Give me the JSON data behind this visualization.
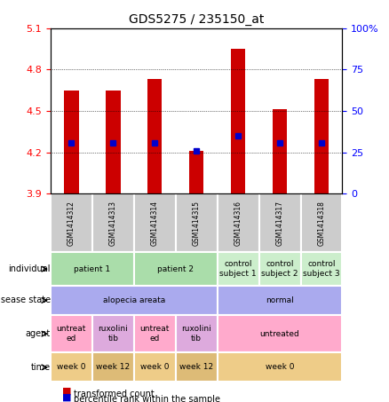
{
  "title": "GDS5275 / 235150_at",
  "samples": [
    "GSM1414312",
    "GSM1414313",
    "GSM1414314",
    "GSM1414315",
    "GSM1414316",
    "GSM1414317",
    "GSM1414318"
  ],
  "bar_values": [
    4.65,
    4.65,
    4.73,
    4.21,
    4.95,
    4.51,
    4.73
  ],
  "bar_base": 3.9,
  "percentile_values": [
    4.27,
    4.27,
    4.27,
    4.21,
    4.32,
    4.27,
    4.27
  ],
  "ylim": [
    3.9,
    5.1
  ],
  "y2lim": [
    0,
    100
  ],
  "yticks": [
    3.9,
    4.2,
    4.5,
    4.8,
    5.1
  ],
  "y2ticks": [
    0,
    25,
    50,
    75,
    100
  ],
  "bar_color": "#cc0000",
  "percentile_color": "#0000cc",
  "individual_row": {
    "label": "individual",
    "cells": [
      {
        "text": "patient 1",
        "span": 2,
        "color": "#aaddaa"
      },
      {
        "text": "patient 2",
        "span": 2,
        "color": "#aaddaa"
      },
      {
        "text": "control\nsubject 1",
        "span": 1,
        "color": "#cceecc"
      },
      {
        "text": "control\nsubject 2",
        "span": 1,
        "color": "#cceecc"
      },
      {
        "text": "control\nsubject 3",
        "span": 1,
        "color": "#cceecc"
      }
    ]
  },
  "disease_row": {
    "label": "disease state",
    "cells": [
      {
        "text": "alopecia areata",
        "span": 4,
        "color": "#aaaaee"
      },
      {
        "text": "normal",
        "span": 3,
        "color": "#aaaaee"
      }
    ]
  },
  "agent_row": {
    "label": "agent",
    "cells": [
      {
        "text": "untreat\ned",
        "span": 1,
        "color": "#ffaacc"
      },
      {
        "text": "ruxolini\ntib",
        "span": 1,
        "color": "#ddaadd"
      },
      {
        "text": "untreat\ned",
        "span": 1,
        "color": "#ffaacc"
      },
      {
        "text": "ruxolini\ntib",
        "span": 1,
        "color": "#ddaadd"
      },
      {
        "text": "untreated",
        "span": 3,
        "color": "#ffaacc"
      }
    ]
  },
  "time_row": {
    "label": "time",
    "cells": [
      {
        "text": "week 0",
        "span": 1,
        "color": "#eecc88"
      },
      {
        "text": "week 12",
        "span": 1,
        "color": "#ddbb77"
      },
      {
        "text": "week 0",
        "span": 1,
        "color": "#eecc88"
      },
      {
        "text": "week 12",
        "span": 1,
        "color": "#ddbb77"
      },
      {
        "text": "week 0",
        "span": 3,
        "color": "#eecc88"
      }
    ]
  },
  "legend_items": [
    {
      "color": "#cc0000",
      "label": "transformed count"
    },
    {
      "color": "#0000cc",
      "label": "percentile rank within the sample"
    }
  ]
}
